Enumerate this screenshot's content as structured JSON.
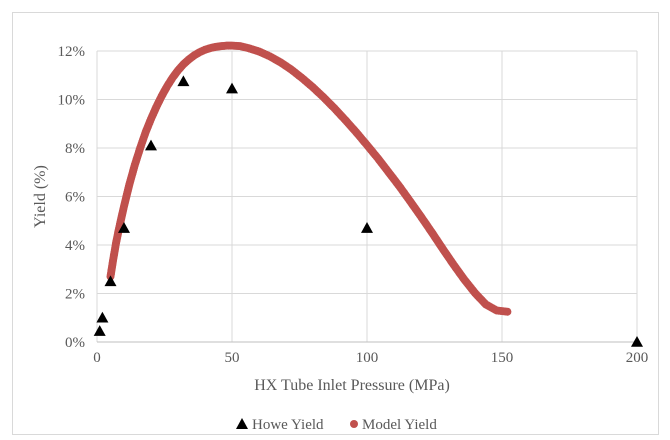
{
  "chart_data": {
    "type": "scatter",
    "title": "",
    "xlabel": "HX Tube Inlet Pressure (MPa)",
    "ylabel": "Yield (%)",
    "xlim": [
      0,
      200
    ],
    "ylim": [
      0,
      12
    ],
    "x_ticks": [
      0,
      50,
      100,
      150,
      200
    ],
    "x_tick_labels": [
      "0",
      "50",
      "100",
      "150",
      "200"
    ],
    "y_ticks": [
      0,
      2,
      4,
      6,
      8,
      10,
      12
    ],
    "y_tick_labels": [
      "0%",
      "2%",
      "4%",
      "6%",
      "8%",
      "10%",
      "12%"
    ],
    "grid": "vertical and horizontal major gridlines",
    "legend_position": "bottom",
    "series": [
      {
        "name": "Howe Yield",
        "marker": "triangle",
        "color": "#000000",
        "x": [
          1,
          2,
          5,
          10,
          20,
          32,
          50,
          100,
          200
        ],
        "y": [
          0.45,
          1.0,
          2.5,
          4.7,
          8.1,
          10.75,
          10.45,
          4.7,
          0.0
        ]
      },
      {
        "name": "Model Yield",
        "marker": "circle",
        "color": "#c0504d",
        "x": [
          5,
          6,
          7,
          8,
          9,
          10,
          12,
          14,
          16,
          18,
          20,
          22,
          24,
          26,
          28,
          30,
          32,
          34,
          36,
          38,
          40,
          42,
          44,
          46,
          48,
          50,
          53,
          56,
          60,
          64,
          68,
          72,
          76,
          80,
          84,
          88,
          92,
          96,
          100,
          104,
          108,
          112,
          116,
          120,
          124,
          128,
          132,
          136,
          140,
          144,
          148,
          152
        ],
        "y": [
          2.7,
          3.4,
          4.05,
          4.6,
          5.1,
          5.6,
          6.5,
          7.3,
          8.0,
          8.65,
          9.2,
          9.7,
          10.15,
          10.55,
          10.9,
          11.2,
          11.45,
          11.65,
          11.82,
          11.95,
          12.05,
          12.12,
          12.17,
          12.2,
          12.22,
          12.22,
          12.2,
          12.12,
          11.98,
          11.78,
          11.53,
          11.23,
          10.88,
          10.5,
          10.08,
          9.63,
          9.15,
          8.65,
          8.12,
          7.58,
          7.0,
          6.42,
          5.8,
          5.17,
          4.52,
          3.85,
          3.2,
          2.58,
          2.02,
          1.55,
          1.3,
          1.25
        ]
      }
    ]
  }
}
